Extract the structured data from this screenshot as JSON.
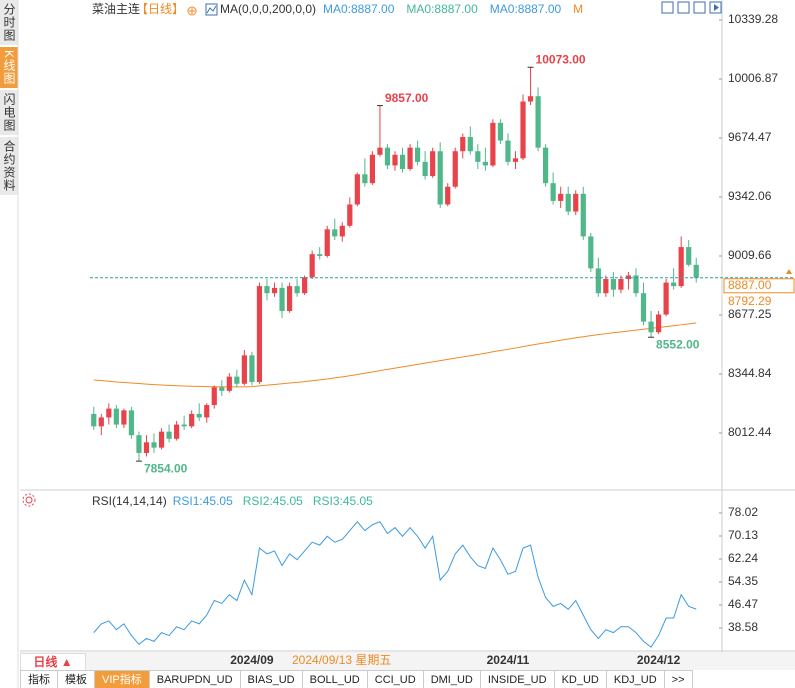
{
  "sidebar": {
    "tabs": [
      "分时图",
      "K线图",
      "闪电图",
      "合约资料"
    ]
  },
  "header": {
    "symbol": "菜油主连",
    "period": "【日线】",
    "ma_params": "MA(0,0,0,200,0,0)",
    "ma_legend": [
      {
        "text": "MA0:8887.00",
        "color": "#3d9be0"
      },
      {
        "text": "MA0:8887.00",
        "color": "#3fb99a"
      },
      {
        "text": "MA0:8887.00",
        "color": "#3d9be0"
      },
      {
        "text": "M",
        "color": "#f08a24"
      }
    ]
  },
  "chart_data": [
    {
      "type": "candlestick",
      "up_color": "#e8434b",
      "down_color": "#4fb78a",
      "ylim": [
        7702.6,
        10406.9
      ],
      "yticks": [
        10339.28,
        10006.87,
        9674.47,
        9342.06,
        9009.66,
        8677.25,
        8344.84,
        8012.44
      ],
      "categories": [
        null,
        null,
        null,
        null,
        null,
        null,
        null,
        null,
        null,
        null,
        null,
        null,
        null,
        null,
        null,
        null,
        null,
        null,
        null,
        null,
        null,
        "2024/09",
        null,
        null,
        null,
        null,
        null,
        null,
        null,
        null,
        null,
        null,
        null,
        null,
        null,
        null,
        null,
        null,
        null,
        null,
        null,
        null,
        null,
        null,
        null,
        null,
        null,
        null,
        null,
        null,
        null,
        null,
        null,
        null,
        null,
        "2024/11",
        null,
        null,
        null,
        null,
        null,
        null,
        null,
        null,
        null,
        null,
        null,
        null,
        null,
        null,
        null,
        null,
        null,
        null,
        null,
        "2024/12",
        null,
        null,
        null,
        null,
        null
      ],
      "open": [
        8120,
        8050,
        8100,
        8150,
        8060,
        8140,
        8000,
        7900,
        7960,
        7930,
        8020,
        7980,
        8060,
        8050,
        8120,
        8100,
        8170,
        8270,
        8250,
        8330,
        8290,
        8450,
        8300,
        8840,
        8800,
        8830,
        8700,
        8840,
        8800,
        8890,
        9020,
        9010,
        9160,
        9120,
        9180,
        9300,
        9470,
        9420,
        9580,
        9620,
        9520,
        9580,
        9500,
        9620,
        9540,
        9460,
        9600,
        9300,
        9400,
        9600,
        9680,
        9600,
        9540,
        9520,
        9760,
        9660,
        9540,
        9560,
        9880,
        9910,
        9620,
        9420,
        9320,
        9360,
        9260,
        9360,
        9120,
        8940,
        8800,
        8880,
        8820,
        8880,
        8900,
        8800,
        8640,
        8580,
        8680,
        8860,
        8840,
        9060,
        8960
      ],
      "high": [
        8160,
        8120,
        8180,
        8170,
        8150,
        8160,
        8020,
        8000,
        8010,
        8040,
        8060,
        8080,
        8110,
        8140,
        8180,
        8180,
        8280,
        8310,
        8350,
        8370,
        8480,
        8470,
        8860,
        8880,
        8860,
        8860,
        8860,
        8880,
        8900,
        9040,
        9060,
        9180,
        9220,
        9200,
        9340,
        9480,
        9560,
        9600,
        9857,
        9640,
        9600,
        9620,
        9640,
        9660,
        9600,
        9620,
        9650,
        9420,
        9620,
        9700,
        9740,
        9640,
        9620,
        9780,
        9780,
        9700,
        9600,
        9920,
        10073,
        9960,
        9640,
        9480,
        9400,
        9400,
        9380,
        9400,
        9140,
        9000,
        8900,
        8920,
        8900,
        8920,
        8940,
        8860,
        8700,
        8700,
        8880,
        8940,
        9120,
        9100,
        9000
      ],
      "low": [
        8030,
        8000,
        8060,
        8040,
        8040,
        7980,
        7854,
        7880,
        7900,
        7920,
        7960,
        7970,
        8030,
        8040,
        8080,
        8070,
        8150,
        8220,
        8240,
        8270,
        8280,
        8280,
        8290,
        8760,
        8780,
        8660,
        8690,
        8780,
        8790,
        8880,
        8990,
        9000,
        9100,
        9090,
        9170,
        9290,
        9400,
        9410,
        9570,
        9500,
        9490,
        9480,
        9490,
        9520,
        9440,
        9450,
        9280,
        9290,
        9390,
        9560,
        9580,
        9500,
        9490,
        9510,
        9640,
        9520,
        9500,
        9550,
        9860,
        9600,
        9400,
        9300,
        9280,
        9240,
        9240,
        9100,
        8920,
        8780,
        8780,
        8780,
        8800,
        8820,
        8780,
        8620,
        8552,
        8570,
        8670,
        8820,
        8830,
        8950,
        8860
      ],
      "close": [
        8050,
        8100,
        8150,
        8060,
        8140,
        8000,
        7900,
        7960,
        7930,
        8020,
        7980,
        8060,
        8050,
        8120,
        8100,
        8170,
        8270,
        8250,
        8330,
        8290,
        8450,
        8300,
        8840,
        8800,
        8830,
        8700,
        8840,
        8800,
        8890,
        9020,
        9010,
        9160,
        9120,
        9180,
        9300,
        9470,
        9420,
        9580,
        9620,
        9520,
        9580,
        9500,
        9620,
        9540,
        9460,
        9600,
        9300,
        9400,
        9600,
        9680,
        9600,
        9540,
        9520,
        9760,
        9660,
        9540,
        9560,
        9880,
        9910,
        9620,
        9420,
        9320,
        9360,
        9260,
        9360,
        9120,
        8940,
        8800,
        8880,
        8820,
        8880,
        8900,
        8800,
        8640,
        8580,
        8680,
        8860,
        8840,
        9060,
        8960,
        8887
      ],
      "ma": {
        "color": "#f08a24",
        "values": [
          8311,
          8308,
          8304,
          8300,
          8297,
          8294,
          8291,
          8288,
          8285,
          8283,
          8281,
          8279,
          8277,
          8276,
          8275,
          8274,
          8273,
          8273,
          8272,
          8272,
          8272,
          8274,
          8278,
          8282,
          8286,
          8290,
          8294,
          8298,
          8302,
          8307,
          8312,
          8317,
          8323,
          8329,
          8335,
          8342,
          8349,
          8356,
          8364,
          8371,
          8378,
          8385,
          8392,
          8399,
          8406,
          8413,
          8420,
          8427,
          8434,
          8441,
          8448,
          8455,
          8462,
          8470,
          8477,
          8484,
          8491,
          8499,
          8507,
          8514,
          8521,
          8528,
          8535,
          8542,
          8549,
          8555,
          8561,
          8567,
          8572,
          8577,
          8582,
          8587,
          8592,
          8597,
          8602,
          8607,
          8612,
          8617,
          8622,
          8627,
          8632
        ]
      },
      "high_marks": [
        {
          "value": 9857,
          "label": "9857.00"
        },
        {
          "value": 10073,
          "label": "10073.00"
        }
      ],
      "low_marks": [
        {
          "value": 7854,
          "label": "7854.00"
        },
        {
          "value": 8552,
          "label": "8552.00"
        }
      ],
      "last_price": {
        "value": 8887,
        "label": "8887.00",
        "color": "#f08a24",
        "line_color": "#2aa0a6"
      },
      "ma_price": {
        "value": 8792.29,
        "label": "8792.29"
      }
    },
    {
      "type": "line",
      "indicator": "RSI(14,14,14)",
      "legend": [
        {
          "name": "RSI1:45.05",
          "color": "#3d9be0"
        },
        {
          "name": "RSI2:45.05",
          "color": "#3fb99a"
        },
        {
          "name": "RSI3:45.05",
          "color": "#3fb99a"
        }
      ],
      "color": "#3d9be0",
      "ylim": [
        31.04,
        83.5
      ],
      "yticks": [
        78.02,
        70.13,
        62.24,
        54.35,
        46.47,
        38.58
      ],
      "values": [
        37,
        40,
        41,
        38,
        40,
        36,
        33,
        35,
        34,
        37,
        36,
        39,
        38,
        41,
        40,
        43,
        48,
        47,
        50,
        48,
        55,
        50,
        66,
        64,
        65,
        60,
        64,
        62,
        65,
        68,
        67,
        70,
        68,
        69,
        72,
        75,
        72,
        74,
        75,
        71,
        73,
        70,
        73,
        70,
        66,
        70,
        55,
        58,
        64,
        67,
        63,
        60,
        59,
        66,
        62,
        57,
        58,
        66,
        67,
        56,
        49,
        46,
        47,
        45,
        48,
        43,
        38,
        35,
        38,
        37,
        39,
        39,
        37,
        34,
        32,
        36,
        42,
        42,
        50,
        46,
        45.05
      ]
    }
  ],
  "footer": {
    "period_button": "日线 ▲",
    "cursor_label": "2024/09/13 星期五",
    "tabs": [
      "指标",
      "模板",
      "VIP指标",
      "BARUPDN_UD",
      "BIAS_UD",
      "BOLL_UD",
      "CCI_UD",
      "DMI_UD",
      "INSIDE_UD",
      "KD_UD",
      "KDJ_UD",
      ">>"
    ]
  }
}
